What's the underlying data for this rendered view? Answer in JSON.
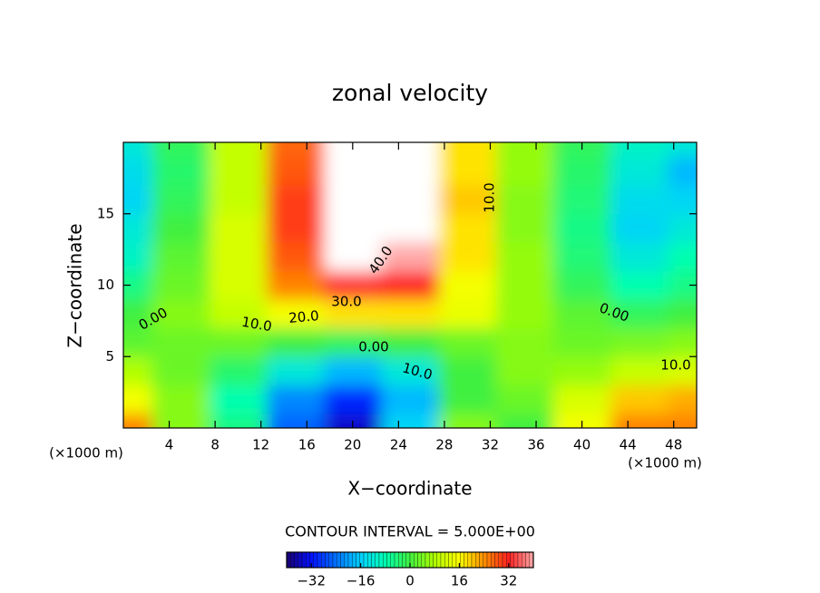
{
  "chart_data": {
    "type": "contour",
    "title": "zonal velocity",
    "x_label": "X−coordinate",
    "y_label": "Z−coordinate",
    "x_unit": "(×1000 m)",
    "y_unit": "(×1000 m)",
    "xlim": [
      0,
      50
    ],
    "ylim": [
      0,
      20
    ],
    "xticks": [
      4,
      8,
      12,
      16,
      20,
      24,
      28,
      32,
      36,
      40,
      44,
      48
    ],
    "yticks": [
      5,
      10,
      15
    ],
    "x": [
      0,
      5,
      10,
      15,
      20,
      25,
      30,
      35,
      40,
      45,
      50
    ],
    "z": [
      0,
      2,
      4,
      6,
      8,
      10,
      12,
      14,
      16,
      18,
      20
    ],
    "values": [
      [
        25,
        5,
        -5,
        -25,
        -35,
        -15,
        5,
        0,
        15,
        25,
        25
      ],
      [
        15,
        5,
        -8,
        -22,
        -30,
        -18,
        0,
        3,
        12,
        20,
        22
      ],
      [
        8,
        3,
        -3,
        -12,
        -18,
        -12,
        0,
        5,
        6,
        10,
        12
      ],
      [
        2,
        3,
        3,
        0,
        -2,
        0,
        3,
        5,
        3,
        4,
        5
      ],
      [
        0,
        5,
        10,
        15,
        18,
        18,
        14,
        6,
        2,
        -2,
        0
      ],
      [
        -5,
        3,
        12,
        25,
        33,
        32,
        15,
        6,
        -2,
        -8,
        -5
      ],
      [
        -10,
        2,
        12,
        28,
        42,
        40,
        18,
        6,
        -4,
        -12,
        -8
      ],
      [
        -12,
        0,
        12,
        30,
        45,
        42,
        18,
        5,
        -5,
        -15,
        -12
      ],
      [
        -15,
        -2,
        10,
        30,
        45,
        44,
        20,
        5,
        -4,
        -14,
        -15
      ],
      [
        -14,
        -3,
        10,
        28,
        45,
        45,
        18,
        6,
        -3,
        -12,
        -18
      ],
      [
        -12,
        -2,
        10,
        27,
        45,
        45,
        18,
        6,
        -2,
        -10,
        -12
      ]
    ],
    "contour_labels": [
      "40.0",
      "30.0",
      "20.0",
      "10.0",
      "0.00",
      "0.00",
      "10.0",
      "10.0",
      "0.00",
      "10.0"
    ],
    "contour_interval_text": "CONTOUR INTERVAL = 5.000E+00",
    "colorbar_lim": [
      -40,
      40
    ],
    "colorbar_ticks": [
      {
        "value": -32,
        "label": "−32"
      },
      {
        "value": -16,
        "label": "−16"
      },
      0,
      16,
      32
    ],
    "colormap": [
      "#1a0070",
      "#0010ff",
      "#0070ff",
      "#00d0ff",
      "#00ffb0",
      "#40f040",
      "#b0ff00",
      "#ffff00",
      "#ff9000",
      "#ff2020",
      "#ffa8a8"
    ],
    "over_color": "#ffffff"
  }
}
